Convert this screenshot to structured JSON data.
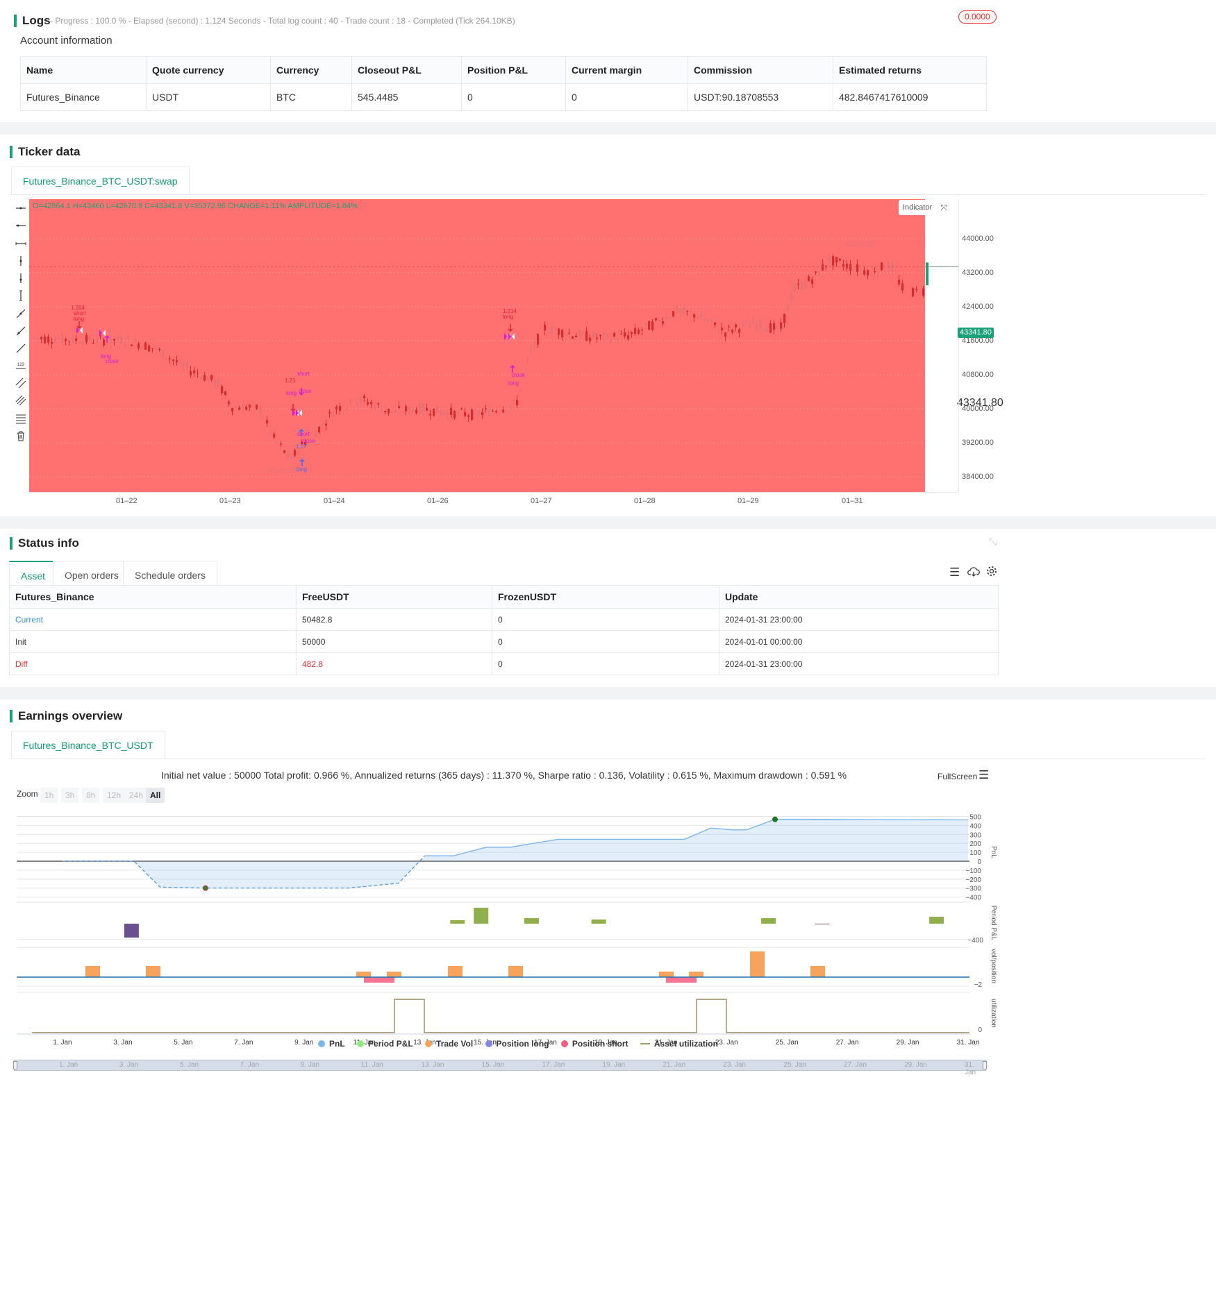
{
  "logs": {
    "title": "Logs",
    "status": "- Progress : 100.0 % - Elapsed (second) : 1.124  Seconds - Total log count : 40 - Trade count : 18 - Completed (Tick 264.10KB)",
    "badge": "0.0000"
  },
  "account": {
    "title": "Account information",
    "headers": [
      "Name",
      "Quote currency",
      "Currency",
      "Closeout P&L",
      "Position P&L",
      "Current margin",
      "Commission",
      "Estimated returns"
    ],
    "row": [
      "Futures_Binance",
      "USDT",
      "BTC",
      "545.4485",
      "0",
      "0",
      "USDT:90.18708553",
      "482.8467417610009"
    ]
  },
  "ticker": {
    "title": "Ticker data",
    "tab": "Futures_Binance_BTC_USDT:swap",
    "ohlc": "O=42864.1 H=43460 L=42670.9 C=43341.8 V=35372.96 CHANGE=1.11% AMPLITUDE=1.84%",
    "indicator_btn": "Indicator",
    "price_tag": "43341.80",
    "hi_label": "43888.00",
    "lo_label": "38545.00",
    "y_ticks": [
      "44000.00",
      "43200.00",
      "42400.00",
      "41600.00",
      "40800.00",
      "40000.00",
      "39200.00",
      "38400.00"
    ],
    "x_ticks": [
      "01–22",
      "01–23",
      "01–24",
      "01–26",
      "01–27",
      "01–28",
      "01–29",
      "01–31"
    ],
    "colors": {
      "bg": "#ff7070",
      "candle": "#e03030",
      "accent": "#1aa17a"
    },
    "annotations": [
      {
        "t": "1.204",
        "c": "#e0203a"
      },
      {
        "t": "short",
        "c": "#e0203a"
      },
      {
        "t": "long",
        "c": "#e0203a"
      },
      {
        "t": "long",
        "c": "#d61ad6"
      },
      {
        "t": "close",
        "c": "#d61ad6"
      },
      {
        "t": "short",
        "c": "#d61ad6"
      },
      {
        "t": "1.21",
        "c": "#e0203a"
      },
      {
        "t": "long",
        "c": "#d61ad6"
      },
      {
        "t": "close",
        "c": "#d61ad6"
      },
      {
        "t": "short",
        "c": "#d61ad6"
      },
      {
        "t": "close",
        "c": "#d61ad6"
      },
      {
        "t": "1.27",
        "c": "#4466ff"
      },
      {
        "t": "long",
        "c": "#4466ff"
      },
      {
        "t": "1.214",
        "c": "#e0203a"
      },
      {
        "t": "long",
        "c": "#e0203a"
      },
      {
        "t": "close",
        "c": "#d61ad6"
      },
      {
        "t": "long",
        "c": "#d61ad6"
      }
    ]
  },
  "status": {
    "title": "Status info",
    "tabs": [
      "Asset",
      "Open orders",
      "Schedule orders"
    ],
    "headers": [
      "Futures_Binance",
      "FreeUSDT",
      "FrozenUSDT",
      "Update"
    ],
    "rows": [
      [
        "Current",
        "50482.8",
        "0",
        "2024-01-31 23:00:00"
      ],
      [
        "Init",
        "50000",
        "0",
        "2024-01-01 00:00:00"
      ],
      [
        "Diff",
        "482.8",
        "0",
        "2024-01-31 23:00:00"
      ]
    ]
  },
  "earnings": {
    "title": "Earnings overview",
    "tab": "Futures_Binance_BTC_USDT",
    "summary": "Initial net value : 50000 Total profit: 0.966 %, Annualized returns (365 days) : 11.370 %, Sharpe ratio : 0.136, Volatility : 0.615 %, Maximum drawdown : 0.591 %",
    "fullscreen": "FullScreen",
    "zoom_label": "Zoom",
    "zoom_options": [
      "1h",
      "3h",
      "8h",
      "12h",
      "24h",
      "All"
    ],
    "pnl_ticks": [
      "500",
      "400",
      "300",
      "200",
      "100",
      "0",
      "−100",
      "−200",
      "−300",
      "−400"
    ],
    "period_tick": "−400",
    "vol_tick": "−2",
    "util_tick": "0",
    "axis_titles": [
      "PnL",
      "Period P&L",
      "vol/position",
      "utilization"
    ],
    "x_dates": [
      "1. Jan",
      "3. Jan",
      "5. Jan",
      "7. Jan",
      "9. Jan",
      "11. Jan",
      "13. Jan",
      "15. Jan",
      "17. Jan",
      "19. Jan",
      "21. Jan",
      "23. Jan",
      "25. Jan",
      "27. Jan",
      "29. Jan",
      "31. Jan"
    ],
    "legend": [
      {
        "name": "PnL",
        "color": "#7cb5ec"
      },
      {
        "name": "Period P&L",
        "color": "#90ed7d"
      },
      {
        "name": "Trade Vol",
        "color": "#f7a35c"
      },
      {
        "name": "Position long",
        "color": "#8085e9"
      },
      {
        "name": "Position short",
        "color": "#f15c80"
      },
      {
        "name": "Asset utilization",
        "color": "#a0a060"
      }
    ]
  }
}
